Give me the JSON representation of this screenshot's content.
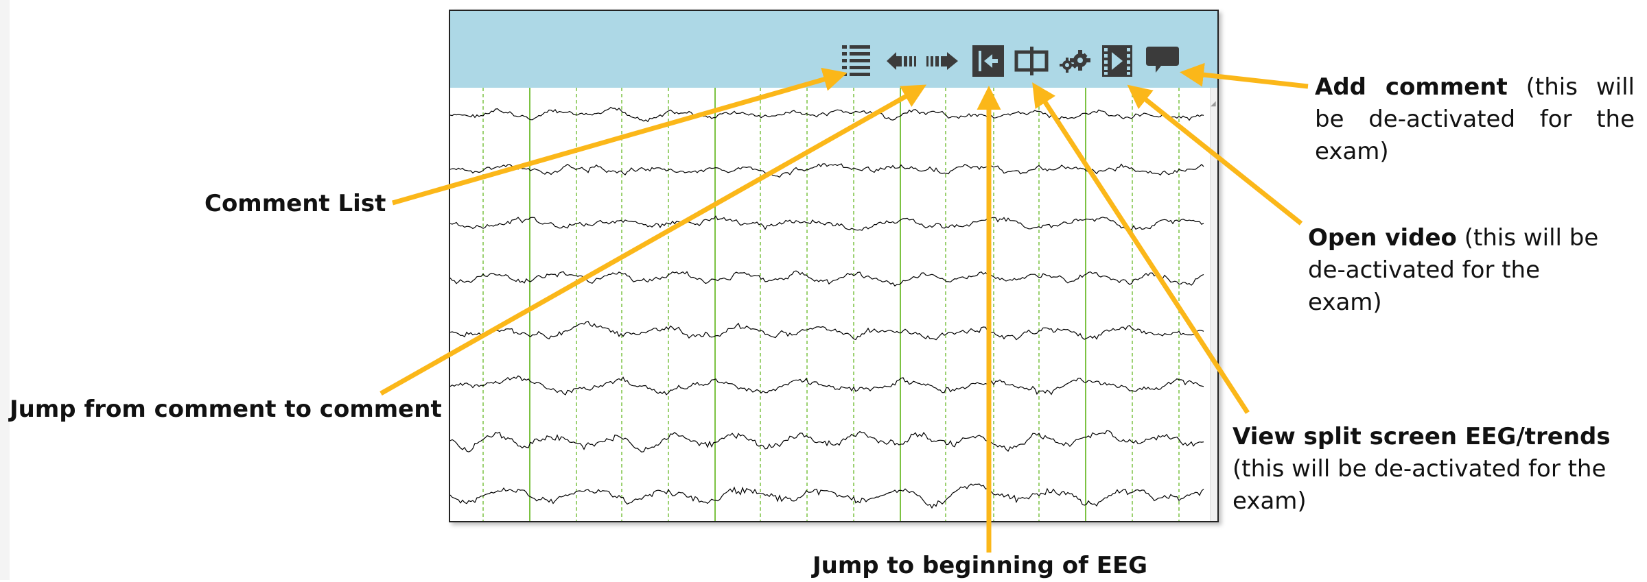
{
  "toolbar": {
    "buttons": [
      {
        "id": "comment-list",
        "icon": "list-icon"
      },
      {
        "id": "prev-comment",
        "icon": "arrow-left-icon"
      },
      {
        "id": "next-comment",
        "icon": "arrow-right-icon"
      },
      {
        "id": "jump-start",
        "icon": "jump-to-start-icon"
      },
      {
        "id": "split-screen",
        "icon": "split-screen-icon"
      },
      {
        "id": "settings",
        "icon": "gears-icon"
      },
      {
        "id": "video",
        "icon": "film-play-icon"
      },
      {
        "id": "add-comment",
        "icon": "speech-bubble-icon"
      }
    ],
    "background_color": "#add8e6"
  },
  "eeg": {
    "channels": 8,
    "trace_color": "#000000",
    "gridline_color": "#7cc242"
  },
  "annotations": {
    "arrow_color": "#fbb719",
    "comment_list": {
      "bold": "Comment List",
      "rest": ""
    },
    "jump_comment": {
      "bold": "Jump from comment to comment",
      "rest": ""
    },
    "jump_beginning": {
      "bold": "Jump to beginning of EEG",
      "rest": ""
    },
    "add_comment": {
      "bold": "Add  comment",
      "rest": " (this  will be  de-activated  for  the exam)"
    },
    "open_video": {
      "bold": "Open video",
      "rest": " (this will be de-activated for the exam)"
    },
    "split_screen": {
      "bold": "View split screen EEG/trends",
      "rest": "(this will be de-activated for the exam)"
    }
  }
}
